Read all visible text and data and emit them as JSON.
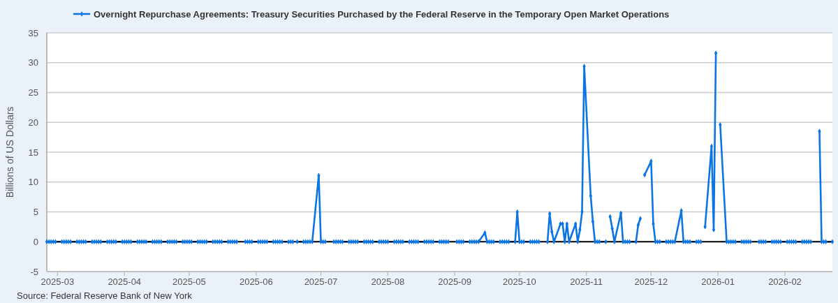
{
  "chart_data": {
    "type": "line",
    "ylabel": "Billions of US Dollars",
    "legend": "top left",
    "grid": "y",
    "marker": "diamond",
    "xlim": [
      "2025-02-24",
      "2026-02-23"
    ],
    "xticks": [
      {
        "value": "2025-03-01",
        "label": "2025-03"
      },
      {
        "value": "2025-04-01",
        "label": "2025-04"
      },
      {
        "value": "2025-05-01",
        "label": "2025-05"
      },
      {
        "value": "2025-06-01",
        "label": "2025-06"
      },
      {
        "value": "2025-07-01",
        "label": "2025-07"
      },
      {
        "value": "2025-08-01",
        "label": "2025-08"
      },
      {
        "value": "2025-09-01",
        "label": "2025-09"
      },
      {
        "value": "2025-10-01",
        "label": "2025-10"
      },
      {
        "value": "2025-11-01",
        "label": "2025-11"
      },
      {
        "value": "2025-12-01",
        "label": "2025-12"
      },
      {
        "value": "2026-01-01",
        "label": "2026-01"
      },
      {
        "value": "2026-02-01",
        "label": "2026-02"
      }
    ],
    "ylim": [
      -5,
      35
    ],
    "yticks": [
      -5,
      0,
      5,
      10,
      15,
      20,
      25,
      30,
      35
    ],
    "ref_lines": [
      {
        "axis": "y",
        "value": 0,
        "color": "#000000"
      }
    ],
    "annotations": [
      "Source: Federal Reserve Bank of New York"
    ],
    "x": [
      "2025-02-24",
      "2025-02-25",
      "2025-02-26",
      "2025-02-27",
      "2025-02-28",
      "2025-03-03",
      "2025-03-04",
      "2025-03-05",
      "2025-03-06",
      "2025-03-07",
      "2025-03-10",
      "2025-03-11",
      "2025-03-12",
      "2025-03-13",
      "2025-03-14",
      "2025-03-17",
      "2025-03-18",
      "2025-03-19",
      "2025-03-20",
      "2025-03-21",
      "2025-03-24",
      "2025-03-25",
      "2025-03-26",
      "2025-03-27",
      "2025-03-28",
      "2025-03-31",
      "2025-04-01",
      "2025-04-02",
      "2025-04-03",
      "2025-04-04",
      "2025-04-07",
      "2025-04-08",
      "2025-04-09",
      "2025-04-10",
      "2025-04-11",
      "2025-04-14",
      "2025-04-15",
      "2025-04-16",
      "2025-04-17",
      "2025-04-18",
      "2025-04-21",
      "2025-04-22",
      "2025-04-23",
      "2025-04-24",
      "2025-04-25",
      "2025-04-28",
      "2025-04-29",
      "2025-04-30",
      "2025-05-01",
      "2025-05-02",
      "2025-05-05",
      "2025-05-06",
      "2025-05-07",
      "2025-05-08",
      "2025-05-09",
      "2025-05-12",
      "2025-05-13",
      "2025-05-14",
      "2025-05-15",
      "2025-05-16",
      "2025-05-19",
      "2025-05-20",
      "2025-05-21",
      "2025-05-22",
      "2025-05-23",
      "2025-05-26",
      "2025-05-27",
      "2025-05-28",
      "2025-05-29",
      "2025-05-30",
      "2025-06-02",
      "2025-06-03",
      "2025-06-04",
      "2025-06-05",
      "2025-06-06",
      "2025-06-09",
      "2025-06-10",
      "2025-06-11",
      "2025-06-12",
      "2025-06-13",
      "2025-06-16",
      "2025-06-17",
      "2025-06-18",
      "2025-06-19",
      "2025-06-20",
      "2025-06-23",
      "2025-06-24",
      "2025-06-25",
      "2025-06-26",
      "2025-06-27",
      "2025-06-30",
      "2025-07-01",
      "2025-07-02",
      "2025-07-03",
      "2025-07-04",
      "2025-07-07",
      "2025-07-08",
      "2025-07-09",
      "2025-07-10",
      "2025-07-11",
      "2025-07-14",
      "2025-07-15",
      "2025-07-16",
      "2025-07-17",
      "2025-07-18",
      "2025-07-21",
      "2025-07-22",
      "2025-07-23",
      "2025-07-24",
      "2025-07-25",
      "2025-07-28",
      "2025-07-29",
      "2025-07-30",
      "2025-07-31",
      "2025-08-01",
      "2025-08-04",
      "2025-08-05",
      "2025-08-06",
      "2025-08-07",
      "2025-08-08",
      "2025-08-11",
      "2025-08-12",
      "2025-08-13",
      "2025-08-14",
      "2025-08-15",
      "2025-08-18",
      "2025-08-19",
      "2025-08-20",
      "2025-08-21",
      "2025-08-22",
      "2025-08-25",
      "2025-08-26",
      "2025-08-27",
      "2025-08-28",
      "2025-08-29",
      "2025-09-01",
      "2025-09-02",
      "2025-09-03",
      "2025-09-04",
      "2025-09-05",
      "2025-09-08",
      "2025-09-09",
      "2025-09-10",
      "2025-09-11",
      "2025-09-12",
      "2025-09-15",
      "2025-09-16",
      "2025-09-17",
      "2025-09-18",
      "2025-09-19",
      "2025-09-22",
      "2025-09-23",
      "2025-09-24",
      "2025-09-25",
      "2025-09-26",
      "2025-09-29",
      "2025-09-30",
      "2025-10-01",
      "2025-10-02",
      "2025-10-03",
      "2025-10-06",
      "2025-10-07",
      "2025-10-08",
      "2025-10-09",
      "2025-10-10",
      "2025-10-13",
      "2025-10-14",
      "2025-10-15",
      "2025-10-16",
      "2025-10-17",
      "2025-10-20",
      "2025-10-21",
      "2025-10-22",
      "2025-10-23",
      "2025-10-24",
      "2025-10-27",
      "2025-10-28",
      "2025-10-29",
      "2025-10-30",
      "2025-10-31",
      "2025-11-03",
      "2025-11-04",
      "2025-11-05",
      "2025-11-06",
      "2025-11-07",
      "2025-11-10",
      "2025-11-11",
      "2025-11-12",
      "2025-11-13",
      "2025-11-14",
      "2025-11-17",
      "2025-11-18",
      "2025-11-19",
      "2025-11-20",
      "2025-11-21",
      "2025-11-24",
      "2025-11-25",
      "2025-11-26",
      "2025-11-27",
      "2025-11-28",
      "2025-12-01",
      "2025-12-02",
      "2025-12-03",
      "2025-12-04",
      "2025-12-05",
      "2025-12-08",
      "2025-12-09",
      "2025-12-10",
      "2025-12-11",
      "2025-12-12",
      "2025-12-15",
      "2025-12-16",
      "2025-12-17",
      "2025-12-18",
      "2025-12-19",
      "2025-12-22",
      "2025-12-23",
      "2025-12-24",
      "2025-12-25",
      "2025-12-26",
      "2025-12-29",
      "2025-12-30",
      "2025-12-31",
      "2026-01-01",
      "2026-01-02",
      "2026-01-05",
      "2026-01-06",
      "2026-01-07",
      "2026-01-08",
      "2026-01-09",
      "2026-01-12",
      "2026-01-13",
      "2026-01-14",
      "2026-01-15",
      "2026-01-16",
      "2026-01-19",
      "2026-01-20",
      "2026-01-21",
      "2026-01-22",
      "2026-01-23",
      "2026-01-26",
      "2026-01-27",
      "2026-01-28",
      "2026-01-29",
      "2026-01-30",
      "2026-02-02",
      "2026-02-03",
      "2026-02-04",
      "2026-02-05",
      "2026-02-06",
      "2026-02-09",
      "2026-02-10",
      "2026-02-11",
      "2026-02-12",
      "2026-02-13",
      "2026-02-16",
      "2026-02-17",
      "2026-02-18",
      "2026-02-19",
      "2026-02-20",
      "2026-02-23"
    ],
    "series": [
      {
        "name": "Overnight Repurchase Agreements: Treasury Securities Purchased by the Federal Reserve in the Temporary Open Market Operations",
        "color": "#0b75e3",
        "values": [
          0,
          0,
          0,
          0,
          0,
          0,
          0,
          0,
          0,
          0,
          0,
          0,
          0,
          0,
          0,
          0,
          0,
          0,
          0,
          0,
          0,
          0,
          0,
          0,
          0,
          0,
          0,
          0,
          0,
          0,
          0,
          0,
          0,
          0,
          0,
          0,
          0,
          0,
          0,
          0,
          0,
          0,
          0,
          0,
          0,
          0,
          0,
          0,
          0,
          0,
          0,
          0,
          0,
          0,
          0,
          0,
          0,
          0,
          0,
          0,
          0,
          0,
          0,
          0,
          0,
          null,
          0,
          0,
          0,
          0,
          0,
          0,
          0,
          0,
          0,
          0,
          0,
          0,
          0,
          0,
          0,
          0,
          0,
          null,
          0,
          0,
          0,
          0,
          0,
          0,
          11.1,
          0,
          0,
          0,
          null,
          0,
          0,
          0,
          0,
          0,
          0,
          0,
          0,
          0,
          0,
          0,
          0,
          0,
          0,
          0,
          0,
          0,
          0,
          0,
          0,
          0,
          0,
          0,
          0,
          0,
          0,
          0,
          0,
          0,
          0,
          0,
          0,
          0,
          0,
          0,
          0,
          0,
          0,
          0,
          0,
          null,
          0,
          0,
          0,
          0,
          0,
          0,
          0,
          0,
          0,
          1.5,
          0,
          0,
          0,
          0,
          0,
          0,
          0,
          0,
          0,
          0,
          5.0,
          0,
          0,
          0,
          0,
          0,
          0,
          0,
          0,
          null,
          0,
          4.7,
          1.7,
          0,
          3.0,
          3.0,
          0,
          3.0,
          0,
          3.0,
          0,
          2.0,
          5.0,
          29.4,
          7.7,
          3.4,
          0,
          0,
          0,
          0,
          null,
          4.2,
          2.2,
          0,
          4.8,
          0,
          0,
          0,
          0,
          0,
          2.8,
          3.9,
          null,
          11.2,
          13.5,
          3.0,
          0,
          0,
          0,
          0,
          0,
          0,
          0,
          0,
          5.2,
          0,
          0,
          0,
          0,
          0,
          0,
          0,
          null,
          2.5,
          16.0,
          2.0,
          31.6,
          null,
          19.6,
          0,
          0,
          0,
          0,
          0,
          0,
          0,
          0,
          0,
          0,
          null,
          0,
          0,
          0,
          0,
          0,
          0,
          0,
          0,
          0,
          0,
          0,
          0,
          0,
          0,
          0,
          0,
          0,
          0,
          0,
          null,
          18.5,
          0,
          0,
          0,
          0
        ]
      }
    ]
  }
}
